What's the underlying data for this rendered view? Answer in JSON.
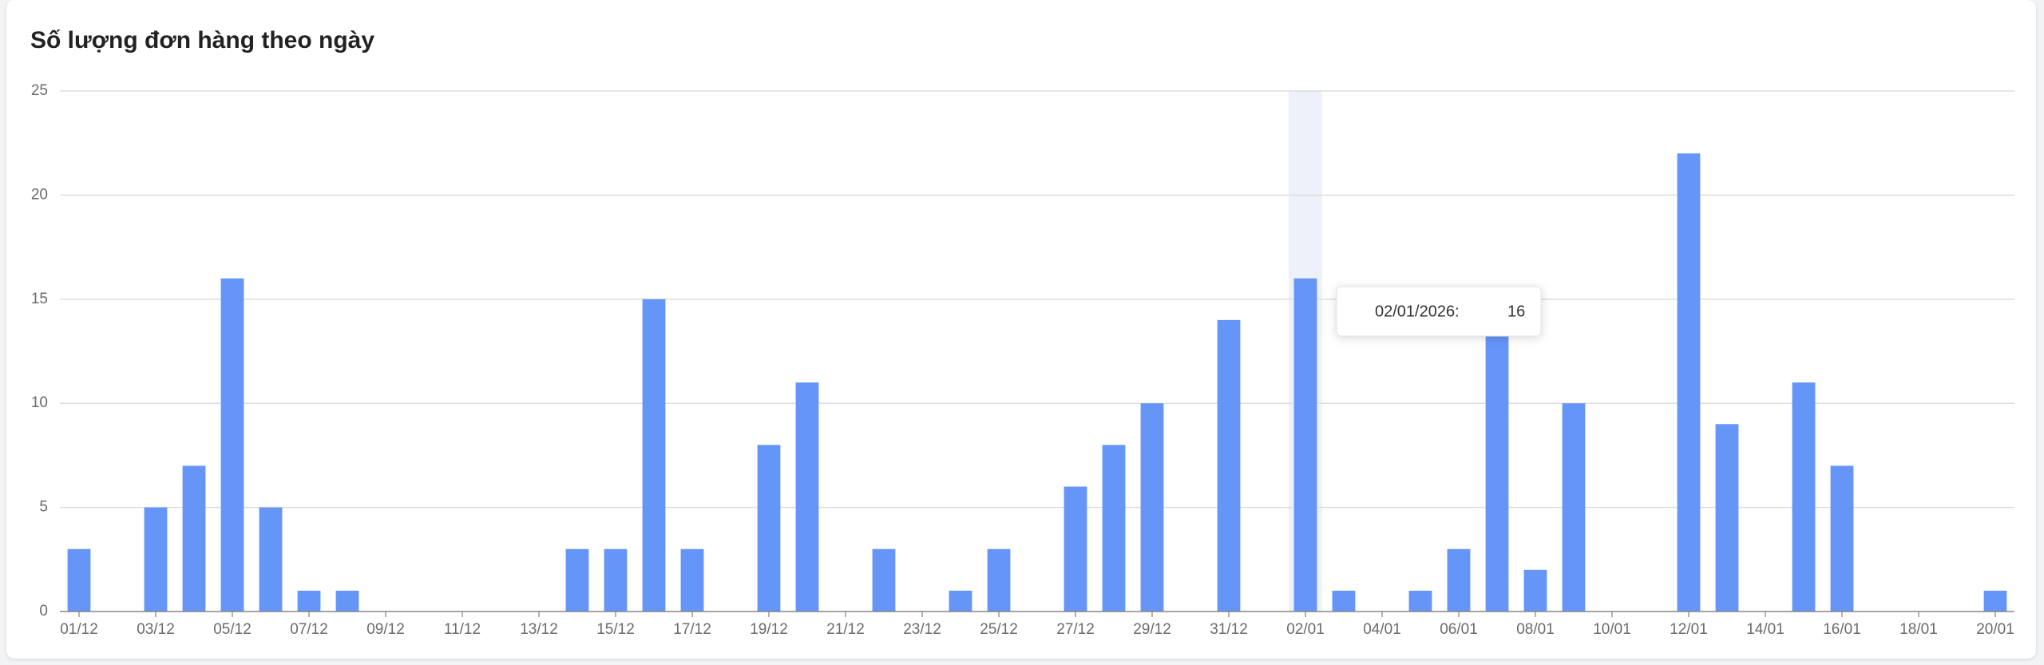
{
  "chart_data": {
    "type": "bar",
    "title": "Số lượng đơn hàng theo ngày",
    "categories": [
      "01/12",
      null,
      "03/12",
      null,
      "05/12",
      null,
      "07/12",
      null,
      "09/12",
      null,
      "11/12",
      null,
      "13/12",
      null,
      "15/12",
      null,
      "17/12",
      null,
      "19/12",
      null,
      "21/12",
      null,
      "23/12",
      null,
      "25/12",
      null,
      "27/12",
      null,
      "29/12",
      null,
      "31/12",
      null,
      "02/01",
      null,
      "04/01",
      null,
      "06/01",
      null,
      "08/01",
      null,
      "10/01",
      null,
      "12/01",
      null,
      "14/01",
      null,
      "16/01",
      null,
      "18/01",
      null,
      "20/01"
    ],
    "values": [
      3,
      0,
      5,
      7,
      16,
      5,
      1,
      1,
      0,
      0,
      0,
      0,
      0,
      3,
      3,
      15,
      3,
      0,
      8,
      11,
      0,
      3,
      0,
      1,
      3,
      0,
      6,
      8,
      10,
      0,
      14,
      0,
      16,
      1,
      0,
      1,
      3,
      15,
      2,
      10,
      0,
      0,
      22,
      9,
      0,
      11,
      7,
      0,
      0,
      0,
      1
    ],
    "color": "#6495f7",
    "ylim": [
      0,
      25
    ],
    "yticks": [
      0,
      5,
      10,
      15,
      20,
      25
    ],
    "grid": true,
    "tooltip": {
      "label": "02/01/2026:",
      "value": 16
    }
  }
}
